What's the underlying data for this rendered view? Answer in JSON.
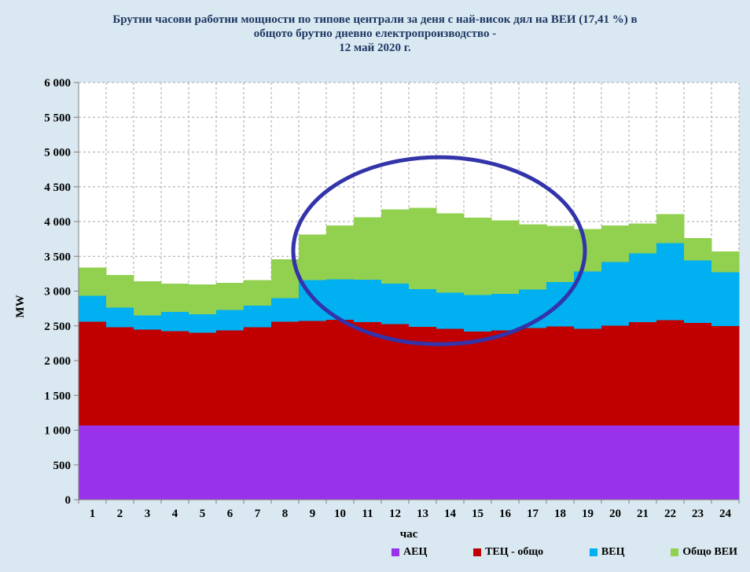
{
  "title": {
    "lines": [
      "Брутни часови работни мощности по типове централи за деня с най-висок дял на ВЕИ (17,41 %) в",
      "общото брутно дневно електропроизводство -",
      "12 май 2020 г."
    ]
  },
  "colors": {
    "background": "#d9e8f1",
    "plot_background": "#ffffff",
    "gridline": "#a6a6a6",
    "axis": "#808080",
    "title_text": "#1f3864",
    "annotation_ellipse": "#3333aa"
  },
  "chart_data": {
    "type": "area",
    "stacked": true,
    "title": "Брутни часови работни мощности по типове централи за деня с най-висок дял на ВЕИ (17,41 %) в общото брутно дневно електропроизводство - 12 май 2020 г.",
    "xlabel": "час",
    "ylabel": "MW",
    "ylim": [
      0,
      6000
    ],
    "ytick_step": 500,
    "grid": true,
    "legend_position": "bottom",
    "categories": [
      1,
      2,
      3,
      4,
      5,
      6,
      7,
      8,
      9,
      10,
      11,
      12,
      13,
      14,
      15,
      16,
      17,
      18,
      19,
      20,
      21,
      22,
      23,
      24
    ],
    "y_ticks": [
      {
        "value": 0,
        "label": "0"
      },
      {
        "value": 500,
        "label": "500"
      },
      {
        "value": 1000,
        "label": "1 000"
      },
      {
        "value": 1500,
        "label": "1 500"
      },
      {
        "value": 2000,
        "label": "2 000"
      },
      {
        "value": 2500,
        "label": "2 500"
      },
      {
        "value": 3000,
        "label": "3 000"
      },
      {
        "value": 3500,
        "label": "3 500"
      },
      {
        "value": 4000,
        "label": "4 000"
      },
      {
        "value": 4500,
        "label": "4 500"
      },
      {
        "value": 5000,
        "label": "5 000"
      },
      {
        "value": 5500,
        "label": "5 500"
      },
      {
        "value": 6000,
        "label": "6 000"
      }
    ],
    "series": [
      {
        "name": "АЕЦ",
        "color": "#9933eb",
        "values": [
          1070,
          1070,
          1070,
          1070,
          1070,
          1070,
          1070,
          1070,
          1070,
          1070,
          1070,
          1070,
          1070,
          1070,
          1070,
          1070,
          1070,
          1070,
          1070,
          1070,
          1070,
          1070,
          1070,
          1070
        ]
      },
      {
        "name": "ТЕЦ - общо",
        "color": "#c00000",
        "values": [
          1490,
          1410,
          1375,
          1355,
          1330,
          1365,
          1410,
          1490,
          1500,
          1520,
          1485,
          1455,
          1415,
          1390,
          1350,
          1365,
          1400,
          1420,
          1385,
          1435,
          1485,
          1510,
          1470,
          1430
        ]
      },
      {
        "name": "ВЕЦ",
        "color": "#00b0f0",
        "values": [
          370,
          280,
          205,
          275,
          265,
          295,
          310,
          340,
          590,
          580,
          610,
          580,
          545,
          515,
          525,
          525,
          550,
          640,
          830,
          915,
          990,
          1110,
          900,
          770
        ]
      },
      {
        "name": "Общо ВЕИ",
        "color": "#92d050",
        "values": [
          410,
          470,
          490,
          410,
          430,
          390,
          370,
          560,
          655,
          775,
          895,
          1070,
          1165,
          1145,
          1110,
          1055,
          940,
          810,
          605,
          525,
          425,
          415,
          320,
          300
        ]
      }
    ],
    "annotation": {
      "shape": "ellipse",
      "description": "blue ellipse highlighting midday RES peak",
      "center_hour": 13.6,
      "center_mw": 3580,
      "radius_hours": 5.3,
      "radius_mw": 1345,
      "color": "#3333aa",
      "stroke_width": 5
    }
  }
}
